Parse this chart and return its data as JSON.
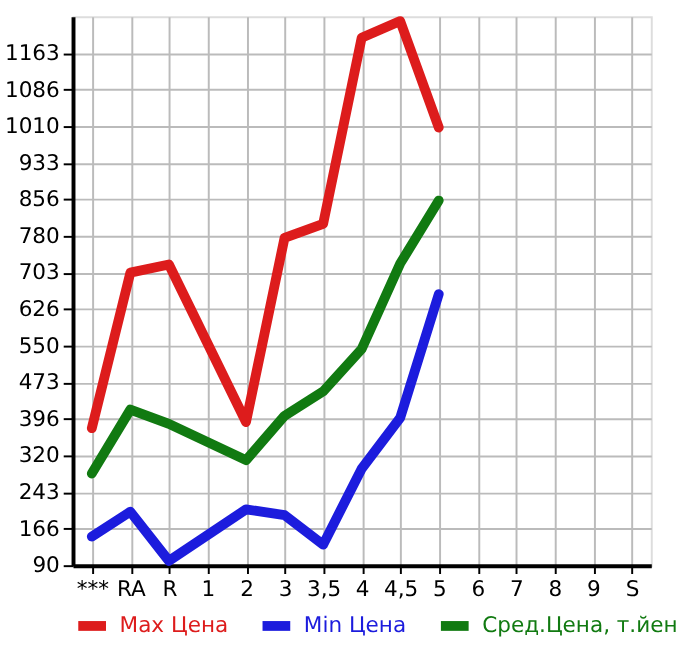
{
  "chart_data": {
    "type": "line",
    "categories": [
      "***",
      "RA",
      "R",
      "1",
      "2",
      "3",
      "3,5",
      "4",
      "4,5",
      "5",
      "6",
      "7",
      "8",
      "9",
      "S"
    ],
    "series": [
      {
        "name": "Max Цена",
        "color": "#dd1c1c",
        "values": [
          377,
          703,
          720,
          null,
          390,
          776,
          805,
          1195,
          1230,
          1007,
          null,
          null,
          null,
          null,
          null
        ]
      },
      {
        "name": "Min Цена",
        "color": "#1c1cdd",
        "values": [
          150,
          202,
          99,
          null,
          207,
          195,
          133,
          292,
          399,
          658,
          null,
          null,
          null,
          null,
          null
        ]
      },
      {
        "name": "Сред.Цена, т.йен",
        "color": "#117a11",
        "values": [
          282,
          416,
          386,
          null,
          310,
          403,
          454,
          543,
          722,
          854,
          null,
          null,
          null,
          null,
          null
        ]
      }
    ],
    "ylim": [
      90,
      1240
    ],
    "yticks": [
      90,
      166,
      243,
      320,
      396,
      473,
      550,
      626,
      703,
      780,
      856,
      933,
      1010,
      1086,
      1163
    ],
    "grid": true,
    "legend": "bottom",
    "marker": "none",
    "line_style": "solid"
  }
}
